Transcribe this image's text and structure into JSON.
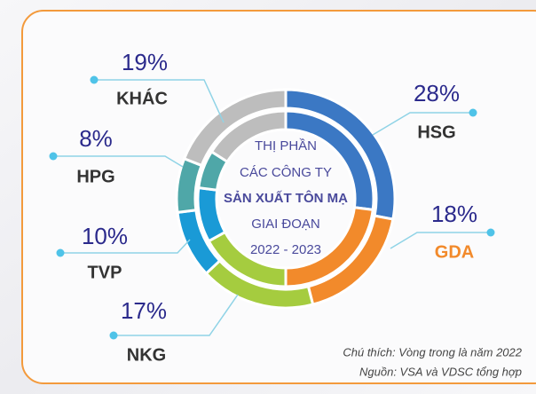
{
  "chart_data": {
    "type": "donut",
    "title_lines": [
      "THỊ PHẦN",
      "CÁC CÔNG TY",
      "SẢN XUẤT TÔN MẠ",
      "GIAI ĐOẠN",
      "2022 - 2023"
    ],
    "notes": [
      "Chú thích: Vòng trong là năm 2022",
      "Nguồn: VSA và VDSC tổng hợp"
    ],
    "categories": [
      "HSG",
      "GDA",
      "NKG",
      "TVP",
      "HPG",
      "KHÁC"
    ],
    "colors": [
      "#3b78c4",
      "#f28a2b",
      "#a5cc3f",
      "#1a9ad6",
      "#4fa7a8",
      "#bdbdbd"
    ],
    "label_colors": [
      "#333333",
      "#f28a2b",
      "#333333",
      "#333333",
      "#333333",
      "#333333"
    ],
    "series": [
      {
        "values": [
          28,
          18,
          17,
          10,
          8,
          19
        ],
        "value_labels": [
          "28%",
          "18%",
          "17%",
          "10%",
          "8%",
          "19%"
        ]
      },
      {
        "values": [
          27,
          23,
          17,
          10,
          7,
          16
        ]
      }
    ]
  }
}
